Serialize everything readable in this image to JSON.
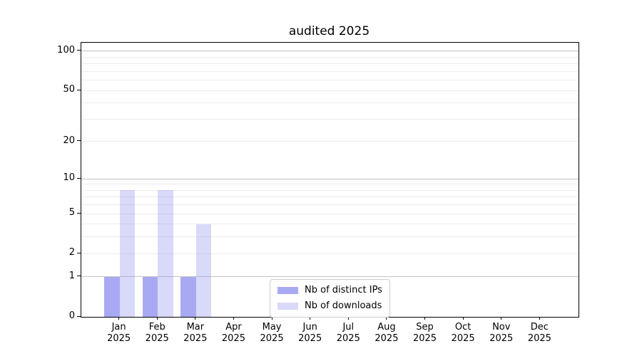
{
  "chart_data": {
    "type": "bar",
    "title": "audited 2025",
    "categories": [
      "Jan",
      "Feb",
      "Mar",
      "Apr",
      "May",
      "Jun",
      "Jul",
      "Aug",
      "Sep",
      "Oct",
      "Nov",
      "Dec"
    ],
    "xtick_year": "2025",
    "series": [
      {
        "name": "Nb of distinct IPs",
        "color": "rgba(136,136,238,0.72)",
        "values": [
          1,
          1,
          1,
          0,
          0,
          0,
          0,
          0,
          0,
          0,
          0,
          0
        ]
      },
      {
        "name": "Nb of downloads",
        "color": "rgba(136,136,238,0.32)",
        "values": [
          8,
          8,
          4,
          0,
          0,
          0,
          0,
          0,
          0,
          0,
          0,
          0
        ]
      }
    ],
    "yscale": "log1p",
    "ylim": [
      0,
      116
    ],
    "yticks": [
      0,
      1,
      2,
      5,
      10,
      20,
      50,
      100
    ],
    "grid": {
      "major_values": [
        1,
        10,
        100
      ],
      "minor_values": [
        2,
        3,
        4,
        5,
        6,
        7,
        8,
        9,
        20,
        30,
        40,
        50,
        60,
        70,
        80,
        90
      ],
      "major_color": "#c3c3c3",
      "minor_color": "#ececec"
    },
    "legend_position": "lower center-left",
    "axis_color": "#000000",
    "background_color": "#ffffff"
  }
}
